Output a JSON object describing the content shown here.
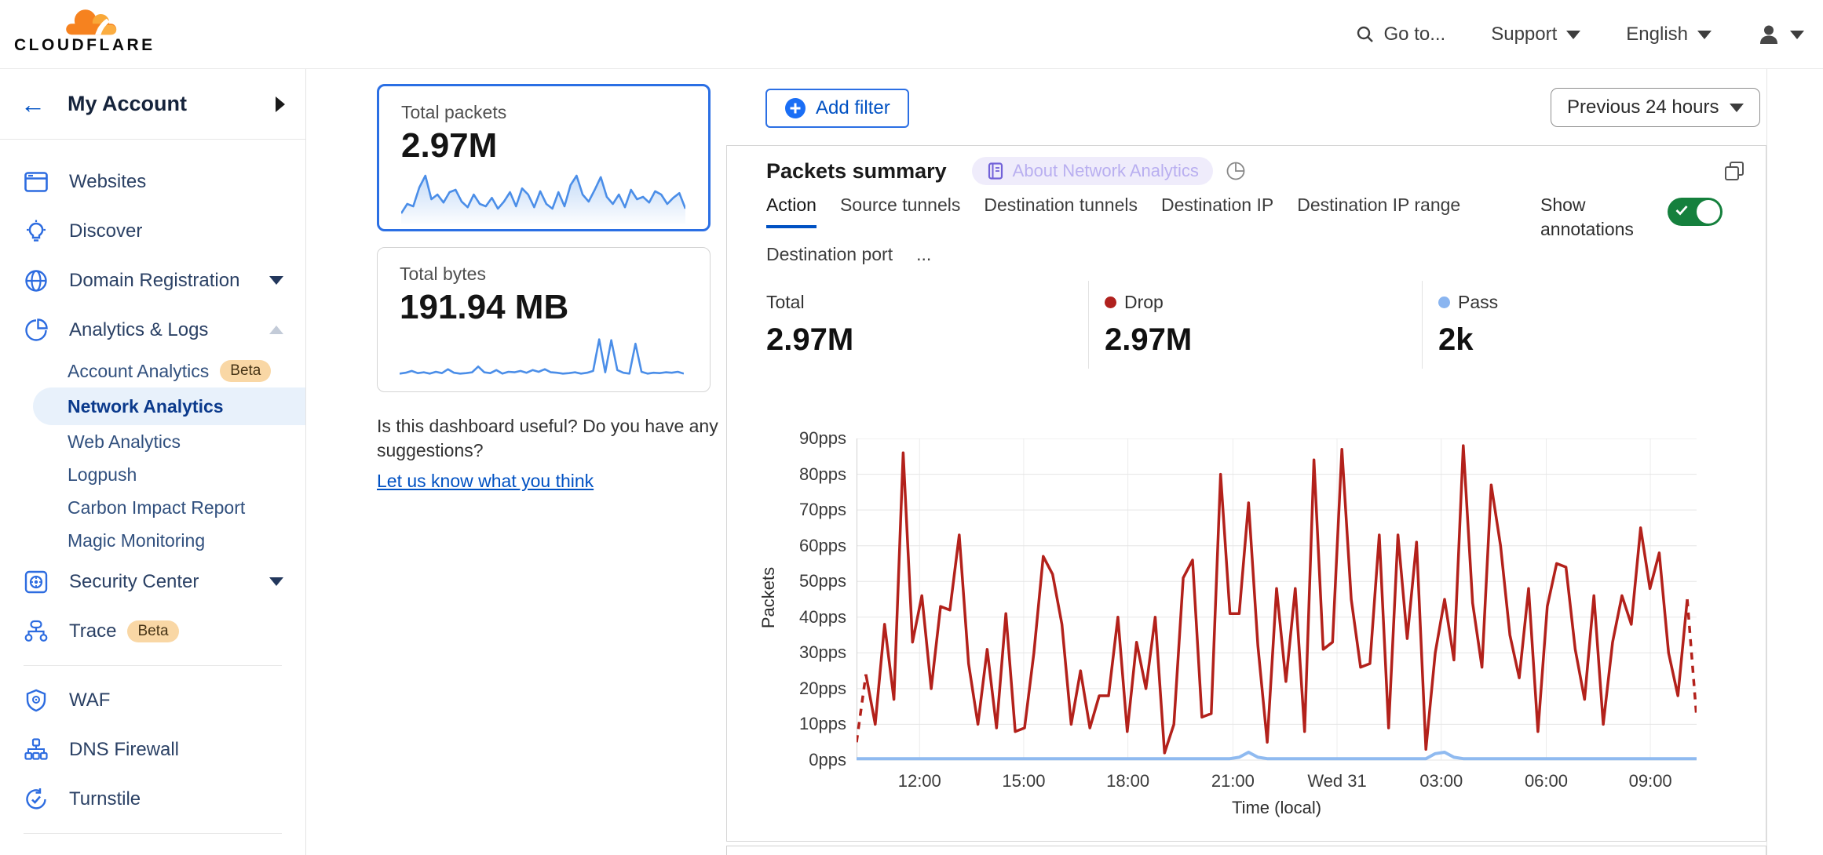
{
  "topnav": {
    "brand": "CLOUDFLARE",
    "goto_label": "Go to...",
    "support_label": "Support",
    "language_label": "English"
  },
  "sidebar": {
    "account_label": "My Account",
    "items": [
      {
        "label": "Websites"
      },
      {
        "label": "Discover"
      },
      {
        "label": "Domain Registration",
        "expandable": true
      },
      {
        "label": "Analytics & Logs",
        "expandable": true,
        "expanded": true
      },
      {
        "label": "Security Center",
        "expandable": true
      },
      {
        "label": "Trace",
        "badge": "Beta"
      },
      {
        "label": "WAF"
      },
      {
        "label": "DNS Firewall"
      },
      {
        "label": "Turnstile"
      }
    ],
    "analytics_sub_items": [
      {
        "label": "Account Analytics",
        "badge": "Beta"
      },
      {
        "label": "Network Analytics",
        "selected": true
      },
      {
        "label": "Web Analytics"
      },
      {
        "label": "Logpush"
      },
      {
        "label": "Carbon Impact Report"
      },
      {
        "label": "Magic Monitoring"
      }
    ]
  },
  "summary_cards": [
    {
      "label": "Total packets",
      "value": "2.97M"
    },
    {
      "label": "Total bytes",
      "value": "191.94 MB"
    }
  ],
  "feedback": {
    "question": "Is this dashboard useful? Do you have any suggestions?",
    "link": "Let us know what you think"
  },
  "filters": {
    "add_filter_label": "Add filter",
    "time_range_label": "Previous 24 hours"
  },
  "panel": {
    "title": "Packets summary",
    "about_badge": "About Network Analytics",
    "tabs": [
      {
        "label": "Action",
        "active": true
      },
      {
        "label": "Source tunnels"
      },
      {
        "label": "Destination tunnels"
      },
      {
        "label": "Destination IP"
      },
      {
        "label": "Destination IP range"
      },
      {
        "label": "Destination port"
      },
      {
        "label": "..."
      }
    ],
    "show_annotations_label": "Show annotations",
    "annotations_on": true,
    "stats": [
      {
        "label": "Total",
        "value": "2.97M",
        "dot_color": null
      },
      {
        "label": "Drop",
        "value": "2.97M",
        "dot_color": "#b0211e"
      },
      {
        "label": "Pass",
        "value": "2k",
        "dot_color": "#8ab5f0"
      }
    ]
  },
  "chart_data": {
    "main": {
      "type": "line",
      "title": "Packets summary",
      "xlabel": "Time (local)",
      "ylabel": "Packets",
      "ylim": [
        0,
        90
      ],
      "unit": "pps",
      "grid": true,
      "y_ticks": [
        "0pps",
        "10pps",
        "20pps",
        "30pps",
        "40pps",
        "50pps",
        "60pps",
        "70pps",
        "80pps",
        "90pps"
      ],
      "x_ticks": [
        {
          "label": "12:00",
          "pos": 0.075
        },
        {
          "label": "15:00",
          "pos": 0.199
        },
        {
          "label": "18:00",
          "pos": 0.323
        },
        {
          "label": "21:00",
          "pos": 0.448
        },
        {
          "label": "Wed 31",
          "pos": 0.572
        },
        {
          "label": "03:00",
          "pos": 0.696
        },
        {
          "label": "06:00",
          "pos": 0.821
        },
        {
          "label": "09:00",
          "pos": 0.945
        }
      ],
      "dash_start_points": 2,
      "dash_end_points": 2,
      "series": [
        {
          "name": "Drop",
          "color": "#b3211b",
          "values": [
            5,
            24,
            10,
            38,
            17,
            86,
            33,
            46,
            20,
            43,
            42,
            63,
            27,
            10,
            31,
            9,
            41,
            8,
            9,
            30,
            57,
            52,
            38,
            10,
            25,
            9,
            18,
            18,
            40,
            8,
            33,
            20,
            40,
            2,
            10,
            51,
            56,
            12,
            13,
            80,
            41,
            41,
            72,
            32,
            5,
            48,
            22,
            48,
            8,
            84,
            31,
            33,
            87,
            45,
            26,
            27,
            63,
            9,
            63,
            34,
            61,
            3,
            30,
            45,
            28,
            88,
            44,
            26,
            77,
            60,
            35,
            23,
            48,
            8,
            43,
            55,
            54,
            31,
            17,
            46,
            10,
            33,
            46,
            38,
            65,
            48,
            58,
            30,
            18,
            45,
            12
          ]
        },
        {
          "name": "Pass",
          "color": "#8fbaf0",
          "values": [
            0.4,
            0.4,
            0.4,
            0.4,
            0.4,
            0.4,
            0.4,
            0.4,
            0.4,
            0.4,
            0.4,
            0.4,
            0.4,
            0.4,
            0.4,
            0.4,
            0.4,
            0.4,
            0.4,
            0.4,
            0.4,
            0.4,
            0.4,
            0.4,
            0.4,
            0.4,
            0.4,
            0.4,
            0.4,
            0.4,
            0.4,
            0.4,
            0.4,
            0.4,
            0.4,
            0.4,
            0.4,
            0.4,
            0.4,
            0.4,
            0.4,
            0.8,
            2.2,
            0.8,
            0.4,
            0.4,
            0.4,
            0.4,
            0.4,
            0.4,
            0.4,
            0.4,
            0.4,
            0.4,
            0.4,
            0.4,
            0.4,
            0.4,
            0.4,
            0.4,
            0.4,
            0.4,
            1.8,
            2.2,
            0.8,
            0.4,
            0.4,
            0.4,
            0.4,
            0.4,
            0.4,
            0.4,
            0.4,
            0.4,
            0.4,
            0.4,
            0.4,
            0.4,
            0.4,
            0.4,
            0.4,
            0.4,
            0.4,
            0.4,
            0.4,
            0.4,
            0.4,
            0.4,
            0.4,
            0.4,
            0.4
          ]
        }
      ]
    },
    "total_packets_sparkline": {
      "type": "area",
      "color": "#4b8ee8",
      "values": [
        15,
        35,
        30,
        70,
        95,
        45,
        55,
        38,
        60,
        65,
        40,
        28,
        55,
        35,
        30,
        48,
        25,
        40,
        60,
        30,
        68,
        55,
        28,
        62,
        35,
        25,
        60,
        30,
        75,
        95,
        55,
        40,
        65,
        92,
        50,
        35,
        55,
        28,
        65,
        45,
        50,
        38,
        62,
        55,
        35,
        48,
        58,
        25
      ]
    },
    "total_bytes_sparkline": {
      "type": "line",
      "color": "#4b8ee8",
      "values": [
        12,
        14,
        18,
        13,
        15,
        12,
        16,
        13,
        22,
        14,
        12,
        13,
        15,
        28,
        15,
        13,
        20,
        12,
        16,
        15,
        18,
        14,
        20,
        16,
        22,
        15,
        14,
        12,
        13,
        15,
        12,
        14,
        18,
        90,
        15,
        88,
        20,
        14,
        12,
        80,
        16,
        12,
        14,
        13,
        15,
        14,
        16,
        12
      ]
    }
  },
  "colors": {
    "accent_blue": "#0051c3",
    "card_border_blue": "#2b6fe4",
    "drop_red": "#b3211b",
    "pass_blue": "#8fbaf0",
    "toggle_green": "#15803d",
    "beta_badge_bg": "#f9d7a5",
    "selected_item_bg": "#e8f1fb",
    "about_badge_bg": "#efecfb",
    "logo_orange": "#f6821f",
    "logo_orange_light": "#fbad41"
  }
}
